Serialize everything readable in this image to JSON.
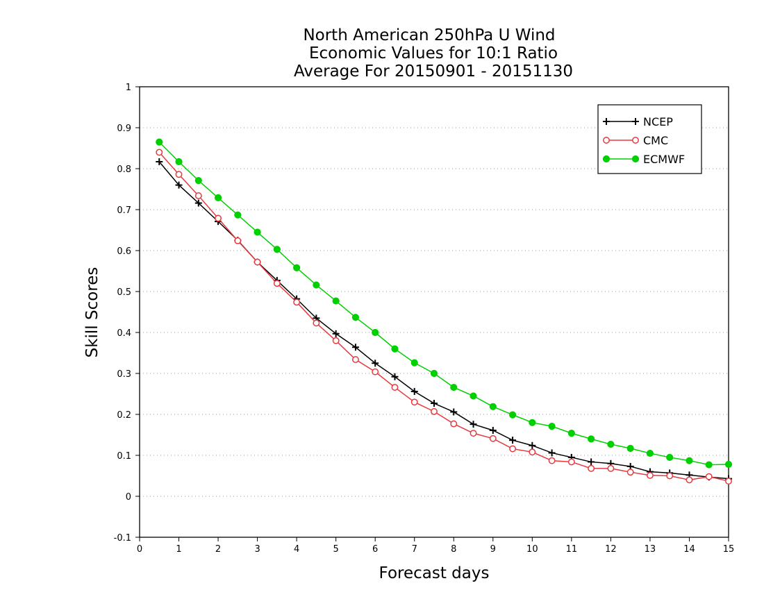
{
  "chart_data": {
    "type": "line",
    "title_lines": [
      "North American 250hPa U Wind",
      "Economic Values for 10:1 Ratio",
      "Average For 20150901 - 20151130"
    ],
    "xlabel": "Forecast days",
    "ylabel": "Skill Scores",
    "xlim": [
      0,
      15
    ],
    "ylim": [
      -0.1,
      1
    ],
    "x_ticks": [
      "0",
      "1",
      "2",
      "3",
      "4",
      "5",
      "6",
      "7",
      "8",
      "9",
      "10",
      "11",
      "12",
      "13",
      "14",
      "15"
    ],
    "y_ticks": [
      "1",
      "0.9",
      "0.8",
      "0.7",
      "0.6",
      "0.5",
      "0.4",
      "0.3",
      "0.2",
      "0.1",
      "0",
      "-0.1"
    ],
    "grid": "horizontal-dotted",
    "legend_position": "top-right",
    "x": [
      0.5,
      1,
      1.5,
      2,
      2.5,
      3,
      3.5,
      4,
      4.5,
      5,
      5.5,
      6,
      6.5,
      7,
      7.5,
      8,
      8.5,
      9,
      9.5,
      10,
      10.5,
      11,
      11.5,
      12,
      12.5,
      13,
      13.5,
      14,
      14.5,
      15
    ],
    "series": [
      {
        "name": "NCEP",
        "color": "#000000",
        "marker": "plus",
        "values": [
          0.817,
          0.76,
          0.716,
          0.671,
          0.625,
          0.572,
          0.527,
          0.482,
          0.435,
          0.397,
          0.364,
          0.325,
          0.292,
          0.256,
          0.227,
          0.206,
          0.176,
          0.161,
          0.137,
          0.124,
          0.106,
          0.095,
          0.084,
          0.08,
          0.073,
          0.06,
          0.057,
          0.052,
          0.047,
          0.043
        ]
      },
      {
        "name": "CMC",
        "color": "#e8383d",
        "marker": "open-circle",
        "values": [
          0.84,
          0.786,
          0.734,
          0.679,
          0.624,
          0.572,
          0.52,
          0.474,
          0.423,
          0.38,
          0.334,
          0.304,
          0.266,
          0.23,
          0.207,
          0.177,
          0.154,
          0.141,
          0.116,
          0.108,
          0.087,
          0.084,
          0.068,
          0.068,
          0.059,
          0.051,
          0.05,
          0.04,
          0.048,
          0.037
        ]
      },
      {
        "name": "ECMWF",
        "color": "#00d000",
        "marker": "filled-circle",
        "values": [
          0.865,
          0.817,
          0.771,
          0.729,
          0.687,
          0.645,
          0.603,
          0.558,
          0.516,
          0.477,
          0.437,
          0.4,
          0.36,
          0.326,
          0.3,
          0.266,
          0.245,
          0.219,
          0.199,
          0.18,
          0.171,
          0.154,
          0.14,
          0.127,
          0.117,
          0.105,
          0.095,
          0.087,
          0.077,
          0.078
        ]
      }
    ]
  }
}
